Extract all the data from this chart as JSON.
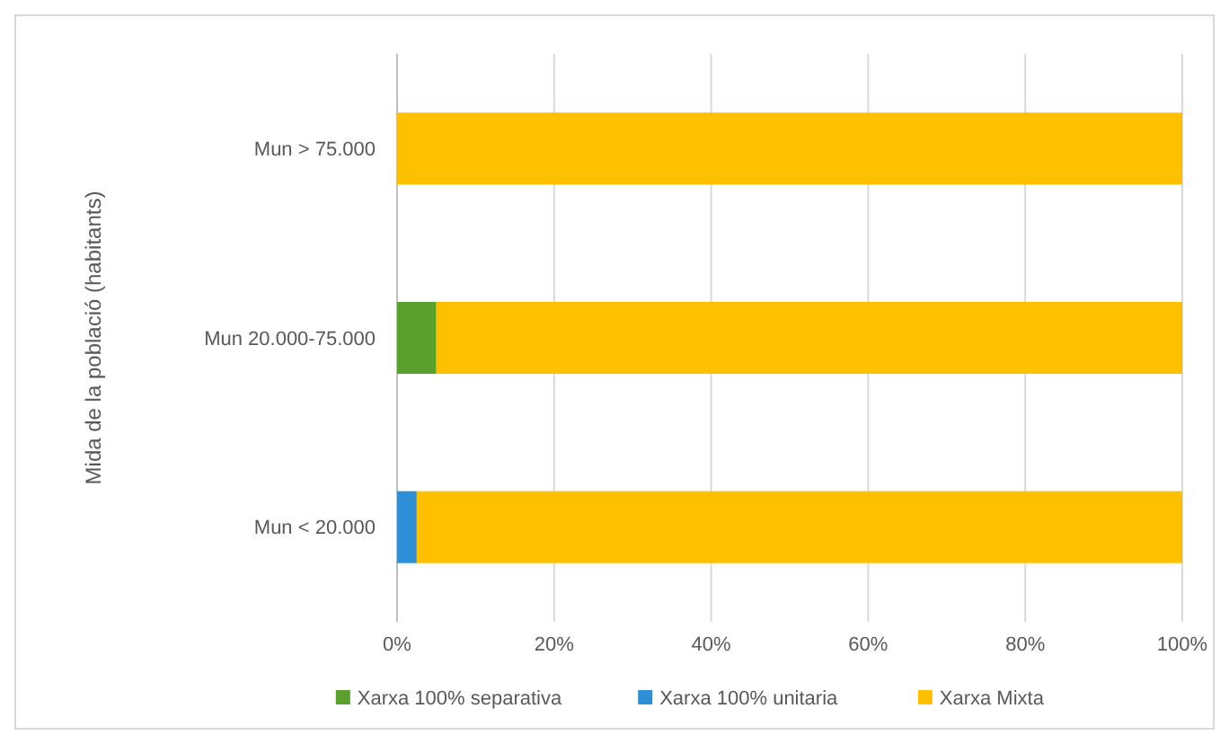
{
  "chart_data": {
    "type": "bar",
    "orientation": "horizontal",
    "stacked": true,
    "ylabel": "Mida de la població (habitants)",
    "categories": [
      "Mun > 75.000",
      "Mun 20.000-75.000",
      "Mun < 20.000"
    ],
    "series": [
      {
        "name": "Xarxa 100% separativa",
        "color": "#5aa02c",
        "values": [
          0,
          5,
          0
        ]
      },
      {
        "name": "Xarxa 100% unitaria",
        "color": "#2e8fd6",
        "values": [
          0,
          0,
          2.5
        ]
      },
      {
        "name": "Xarxa Mixta",
        "color": "#ffc000",
        "values": [
          100,
          95,
          97.5
        ]
      }
    ],
    "xlim": [
      0,
      100
    ],
    "xticks": [
      {
        "value": 0,
        "label": "0%"
      },
      {
        "value": 20,
        "label": "20%"
      },
      {
        "value": 40,
        "label": "40%"
      },
      {
        "value": 60,
        "label": "60%"
      },
      {
        "value": 80,
        "label": "80%"
      },
      {
        "value": 100,
        "label": "100%"
      }
    ],
    "grid": "x",
    "legend": "bottom"
  }
}
